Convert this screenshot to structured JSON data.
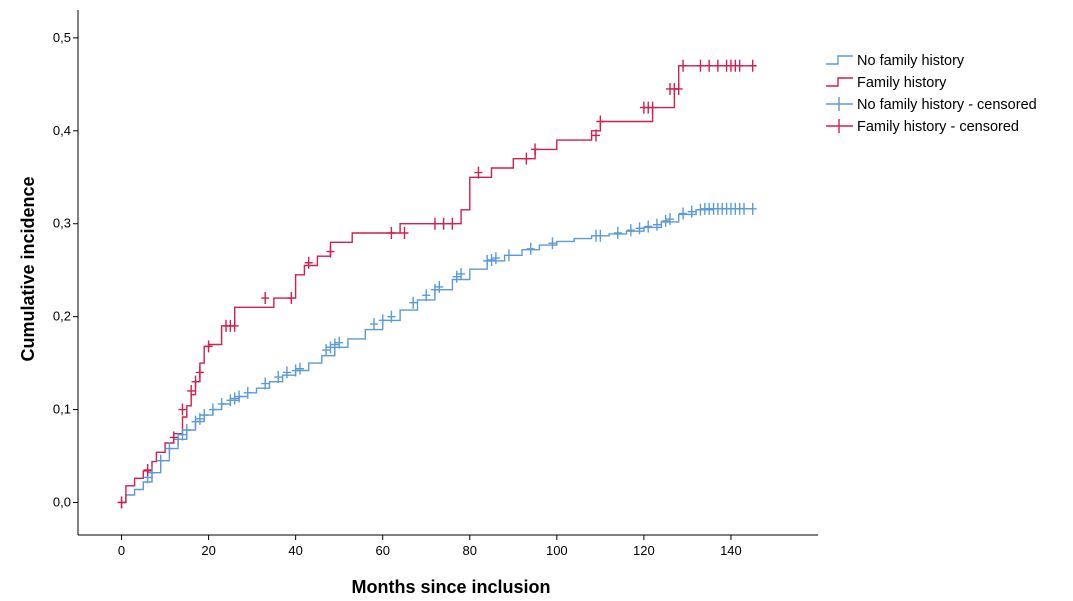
{
  "chart_data": {
    "type": "line",
    "subtype": "step (cumulative incidence)",
    "title": "",
    "xlabel": "Months since inclusion",
    "ylabel": "Cumulative incidence",
    "xlim": [
      -10,
      160
    ],
    "ylim": [
      -0.035,
      0.53
    ],
    "x_ticks": [
      0,
      20,
      40,
      60,
      80,
      100,
      120,
      140
    ],
    "x_tick_labels": [
      "0",
      "20",
      "40",
      "60",
      "80",
      "100",
      "120",
      "140"
    ],
    "y_ticks": [
      0,
      0.1,
      0.2,
      0.3,
      0.4,
      0.5
    ],
    "y_tick_labels": [
      "0,0",
      "0,1",
      "0,2",
      "0,3",
      "0,4",
      "0,5"
    ],
    "grid": false,
    "legend_position": "top-right outside",
    "legend": [
      {
        "label": "No family history",
        "kind": "line",
        "color": "#5B9BD5"
      },
      {
        "label": "Family history",
        "kind": "line",
        "color": "#D11F4E"
      },
      {
        "label": "No family history - censored",
        "kind": "censor",
        "color": "#5B9BD5"
      },
      {
        "label": "Family history - censored",
        "kind": "censor",
        "color": "#D11F4E"
      }
    ],
    "series": [
      {
        "name": "No family history",
        "color": "#5B9BD5",
        "x": [
          0,
          1,
          3,
          5,
          7,
          9,
          11,
          13,
          15,
          17,
          19,
          21,
          23,
          25,
          27,
          29,
          31,
          34,
          37,
          40,
          43,
          46,
          49,
          52,
          56,
          60,
          64,
          68,
          72,
          76,
          80,
          84,
          88,
          92,
          96,
          100,
          104,
          108,
          112,
          116,
          120,
          124,
          128,
          132,
          136,
          140,
          145
        ],
        "y": [
          0,
          0.008,
          0.014,
          0.022,
          0.032,
          0.045,
          0.058,
          0.068,
          0.078,
          0.087,
          0.094,
          0.1,
          0.106,
          0.11,
          0.114,
          0.118,
          0.123,
          0.13,
          0.137,
          0.142,
          0.15,
          0.158,
          0.167,
          0.176,
          0.186,
          0.196,
          0.207,
          0.218,
          0.229,
          0.24,
          0.251,
          0.26,
          0.266,
          0.272,
          0.277,
          0.281,
          0.284,
          0.287,
          0.289,
          0.292,
          0.296,
          0.302,
          0.31,
          0.315,
          0.316,
          0.316,
          0.316
        ]
      },
      {
        "name": "Family history",
        "color": "#D11F4E",
        "x": [
          0,
          1,
          3,
          5,
          7,
          8,
          10,
          12,
          14,
          15,
          16,
          17,
          18,
          19,
          20,
          23,
          26,
          30,
          35,
          40,
          42,
          45,
          48,
          53,
          58,
          64,
          77,
          78,
          80,
          85,
          90,
          95,
          100,
          108,
          110,
          122,
          127,
          128,
          145
        ],
        "y": [
          0,
          0.018,
          0.026,
          0.034,
          0.044,
          0.054,
          0.064,
          0.074,
          0.092,
          0.104,
          0.116,
          0.13,
          0.15,
          0.168,
          0.17,
          0.19,
          0.21,
          0.21,
          0.22,
          0.245,
          0.255,
          0.265,
          0.28,
          0.29,
          0.29,
          0.3,
          0.3,
          0.315,
          0.35,
          0.36,
          0.37,
          0.38,
          0.39,
          0.4,
          0.41,
          0.425,
          0.445,
          0.47,
          0.47
        ]
      }
    ],
    "censored": [
      {
        "name": "No family history - censored",
        "color": "#5B9BD5",
        "x": [
          0,
          6,
          7,
          9,
          11,
          13,
          14,
          15,
          17,
          18,
          19,
          21,
          23,
          25,
          26,
          27,
          29,
          33,
          36,
          38,
          40,
          41,
          47,
          48,
          49,
          50,
          58,
          60,
          62,
          67,
          70,
          72,
          73,
          77,
          78,
          84,
          85,
          86,
          89,
          94,
          99,
          109,
          110,
          114,
          117,
          119,
          121,
          123,
          125,
          126,
          129,
          131,
          133,
          134,
          135,
          136,
          137,
          138,
          139,
          140,
          141,
          142,
          143,
          145
        ],
        "y": [
          0,
          0.027,
          0.032,
          0.045,
          0.058,
          0.068,
          0.073,
          0.078,
          0.087,
          0.09,
          0.094,
          0.1,
          0.106,
          0.11,
          0.112,
          0.114,
          0.118,
          0.128,
          0.135,
          0.14,
          0.142,
          0.144,
          0.164,
          0.167,
          0.17,
          0.172,
          0.192,
          0.196,
          0.2,
          0.215,
          0.223,
          0.229,
          0.232,
          0.243,
          0.246,
          0.26,
          0.261,
          0.263,
          0.266,
          0.273,
          0.279,
          0.287,
          0.287,
          0.29,
          0.293,
          0.295,
          0.297,
          0.299,
          0.303,
          0.305,
          0.311,
          0.313,
          0.315,
          0.316,
          0.316,
          0.316,
          0.316,
          0.316,
          0.316,
          0.316,
          0.316,
          0.316,
          0.316,
          0.316
        ]
      },
      {
        "name": "Family history - censored",
        "color": "#D11F4E",
        "x": [
          0,
          6,
          12,
          14,
          16,
          17,
          18,
          20,
          24,
          25,
          26,
          33,
          39,
          43,
          48,
          62,
          65,
          72,
          74,
          76,
          82,
          93,
          95,
          109,
          110,
          120,
          121,
          122,
          126,
          127,
          128,
          129,
          133,
          135,
          137,
          139,
          140,
          141,
          142,
          145
        ],
        "y": [
          0,
          0.035,
          0.07,
          0.1,
          0.12,
          0.13,
          0.14,
          0.168,
          0.19,
          0.19,
          0.19,
          0.22,
          0.22,
          0.258,
          0.27,
          0.29,
          0.29,
          0.3,
          0.3,
          0.3,
          0.355,
          0.37,
          0.38,
          0.395,
          0.41,
          0.425,
          0.425,
          0.425,
          0.445,
          0.445,
          0.445,
          0.47,
          0.47,
          0.47,
          0.47,
          0.47,
          0.47,
          0.47,
          0.47,
          0.47
        ]
      }
    ]
  }
}
